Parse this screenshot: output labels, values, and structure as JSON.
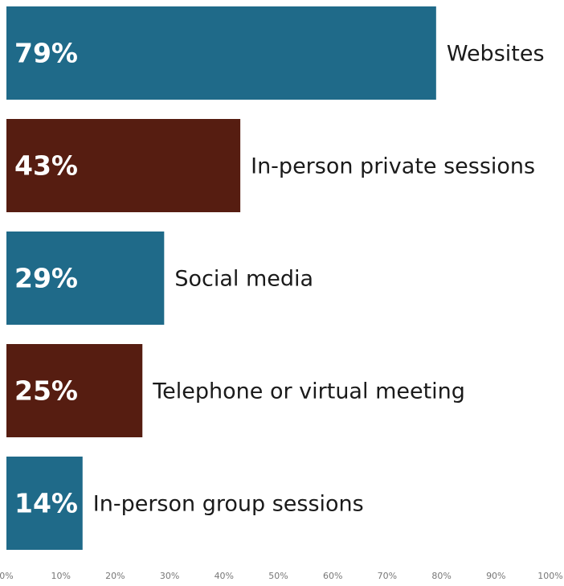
{
  "chart_data": {
    "type": "hbar",
    "categories": [
      "Websites",
      "In-person private sessions",
      "Social media",
      "Telephone or virtual meeting",
      "In-person group sessions"
    ],
    "values": [
      79,
      43,
      29,
      25,
      14
    ],
    "value_labels": [
      "79%",
      "43%",
      "29%",
      "25%",
      "14%"
    ],
    "colors": [
      "#1f6a89",
      "#561d11",
      "#1f6a89",
      "#561d11",
      "#1f6a89"
    ],
    "xlim": [
      0,
      100
    ],
    "xticks": [
      {
        "value": 0,
        "label": "0%"
      },
      {
        "value": 10,
        "label": "10%"
      },
      {
        "value": 20,
        "label": "20%"
      },
      {
        "value": 30,
        "label": "30%"
      },
      {
        "value": 40,
        "label": "40%"
      },
      {
        "value": 50,
        "label": "50%"
      },
      {
        "value": 60,
        "label": "60%"
      },
      {
        "value": 70,
        "label": "70%"
      },
      {
        "value": 80,
        "label": "80%"
      },
      {
        "value": 90,
        "label": "90%"
      },
      {
        "value": 100,
        "label": "100%"
      }
    ],
    "grid": false
  }
}
